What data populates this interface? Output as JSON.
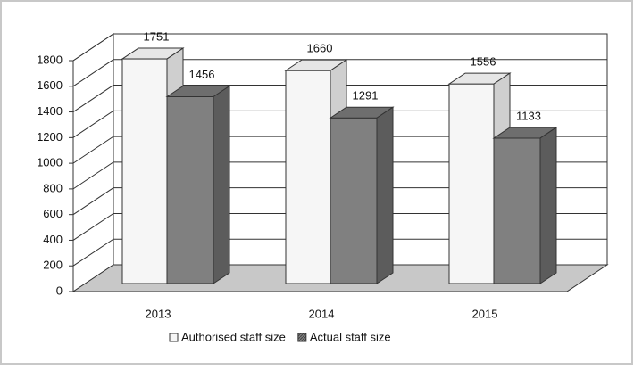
{
  "chart_data": {
    "type": "bar3d",
    "categories": [
      "2013",
      "2014",
      "2015"
    ],
    "series": [
      {
        "name": "Authorised staff size",
        "color": "#f6f6f6",
        "values": [
          1751,
          1660,
          1556
        ]
      },
      {
        "name": "Actual staff size",
        "color": "#808080",
        "values": [
          1456,
          1291,
          1133
        ]
      }
    ],
    "ylim": [
      0,
      1800
    ],
    "yticks": [
      0,
      200,
      400,
      600,
      800,
      1000,
      1200,
      1400,
      1600,
      1800
    ],
    "grid": true,
    "legend": "bottom"
  }
}
